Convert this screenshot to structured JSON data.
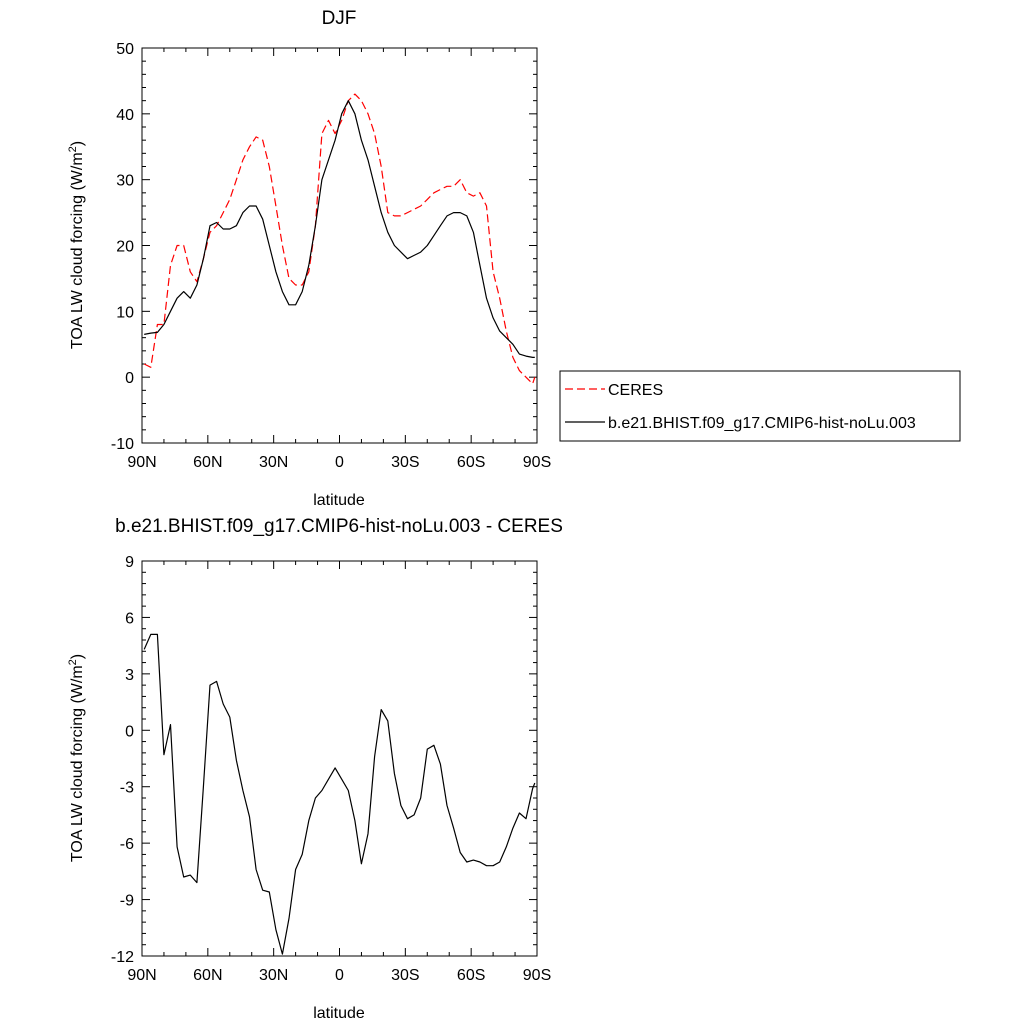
{
  "chart_data": [
    {
      "type": "line",
      "title": "DJF",
      "xlabel": "latitude",
      "ylabel": "TOA LW cloud forcing (W/m²)",
      "ylim": [
        -10,
        50
      ],
      "yticks": [
        -10,
        0,
        10,
        20,
        30,
        40,
        50
      ],
      "xlim": [
        90,
        -90
      ],
      "xticks": [
        90,
        60,
        30,
        0,
        -30,
        -60,
        -90
      ],
      "xtick_labels": [
        "90N",
        "60N",
        "30N",
        "0",
        "30S",
        "60S",
        "90S"
      ],
      "legend": "right-outside",
      "series": [
        {
          "name": "CERES",
          "color": "#ff0000",
          "dash": "dashed",
          "x": [
            89,
            86,
            83,
            80,
            77,
            74,
            71,
            68,
            65,
            62,
            59,
            56,
            53,
            50,
            47,
            44,
            41,
            38,
            35,
            32,
            29,
            26,
            23,
            20,
            17,
            14,
            11,
            8,
            5,
            2,
            -1,
            -4,
            -7,
            -10,
            -13,
            -16,
            -19,
            -22,
            -25,
            -28,
            -31,
            -34,
            -37,
            -40,
            -43,
            -46,
            -49,
            -52,
            -55,
            -58,
            -61,
            -64,
            -67,
            -70,
            -73,
            -76,
            -79,
            -82,
            -85,
            -88,
            -89
          ],
          "y": [
            2,
            1.5,
            8,
            8,
            17,
            20,
            20,
            16,
            14.5,
            18,
            22,
            23,
            25,
            27,
            30,
            33,
            35,
            36.5,
            36,
            32,
            26,
            20,
            15,
            14,
            14,
            16,
            23,
            37,
            39,
            37,
            39,
            42,
            43,
            42,
            40,
            37,
            32,
            25,
            24.5,
            24.5,
            25,
            25.5,
            26,
            27,
            28,
            28.5,
            29,
            29,
            30,
            28,
            27.5,
            28,
            26,
            16,
            12,
            7,
            3,
            1,
            0,
            -1,
            0
          ]
        },
        {
          "name": "b.e21.BHIST.f09_g17.CMIP6-hist-noLu.003",
          "color": "#000000",
          "dash": "solid",
          "x": [
            89,
            86,
            83,
            80,
            77,
            74,
            71,
            68,
            65,
            62,
            59,
            56,
            53,
            50,
            47,
            44,
            41,
            38,
            35,
            32,
            29,
            26,
            23,
            20,
            17,
            14,
            11,
            8,
            5,
            2,
            -1,
            -4,
            -7,
            -10,
            -13,
            -16,
            -19,
            -22,
            -25,
            -28,
            -31,
            -34,
            -37,
            -40,
            -43,
            -46,
            -49,
            -52,
            -55,
            -58,
            -61,
            -64,
            -67,
            -70,
            -73,
            -76,
            -79,
            -82,
            -85,
            -88,
            -89
          ],
          "y": [
            6.5,
            6.7,
            6.8,
            8,
            10,
            12,
            13,
            12,
            14,
            18,
            23,
            23.5,
            22.5,
            22.5,
            23,
            25,
            26,
            26,
            24,
            20,
            16,
            13,
            11,
            11,
            13,
            17,
            23,
            30,
            33,
            36,
            40,
            42,
            40,
            36,
            33,
            29,
            25,
            22,
            20,
            19,
            18,
            18.5,
            19,
            20,
            21.5,
            23,
            24.5,
            25,
            25,
            24.5,
            22,
            17,
            12,
            9,
            7,
            6,
            5,
            3.5,
            3.2,
            3,
            3
          ]
        }
      ]
    },
    {
      "type": "line",
      "title": "b.e21.BHIST.f09_g17.CMIP6-hist-noLu.003 - CERES",
      "xlabel": "latitude",
      "ylabel": "TOA LW cloud forcing (W/m²)",
      "ylim": [
        -12,
        9
      ],
      "yticks": [
        -12,
        -9,
        -6,
        -3,
        0,
        3,
        6,
        9
      ],
      "xlim": [
        90,
        -90
      ],
      "xticks": [
        90,
        60,
        30,
        0,
        -30,
        -60,
        -90
      ],
      "xtick_labels": [
        "90N",
        "60N",
        "30N",
        "0",
        "30S",
        "60S",
        "90S"
      ],
      "series": [
        {
          "color": "#000000",
          "dash": "solid",
          "x": [
            89,
            86,
            83,
            80,
            77,
            74,
            71,
            68,
            65,
            62,
            59,
            56,
            53,
            50,
            47,
            44,
            41,
            38,
            35,
            32,
            29,
            26,
            23,
            20,
            17,
            14,
            11,
            8,
            5,
            2,
            -1,
            -4,
            -7,
            -10,
            -13,
            -16,
            -19,
            -22,
            -25,
            -28,
            -31,
            -34,
            -37,
            -40,
            -43,
            -46,
            -49,
            -52,
            -55,
            -58,
            -61,
            -64,
            -67,
            -70,
            -73,
            -76,
            -79,
            -82,
            -85,
            -88,
            -89
          ],
          "y": [
            4.3,
            5.1,
            5.1,
            -1.3,
            0.3,
            -6.2,
            -7.8,
            -7.7,
            -8.1,
            -3,
            2.4,
            2.6,
            1.4,
            0.7,
            -1.6,
            -3.2,
            -4.6,
            -7.4,
            -8.5,
            -8.6,
            -10.6,
            -11.9,
            -10,
            -7.4,
            -6.6,
            -4.8,
            -3.6,
            -3.2,
            -2.6,
            -2,
            -2.6,
            -3.2,
            -4.8,
            -7.1,
            -5.5,
            -1.4,
            1.1,
            0.5,
            -2.3,
            -4,
            -4.7,
            -4.5,
            -3.6,
            -1,
            -0.8,
            -1.8,
            -4,
            -5.2,
            -6.5,
            -7,
            -6.9,
            -7,
            -7.2,
            -7.2,
            -7,
            -6.2,
            -5.2,
            -4.4,
            -4.7,
            -3.1,
            -2.8
          ]
        }
      ]
    }
  ]
}
